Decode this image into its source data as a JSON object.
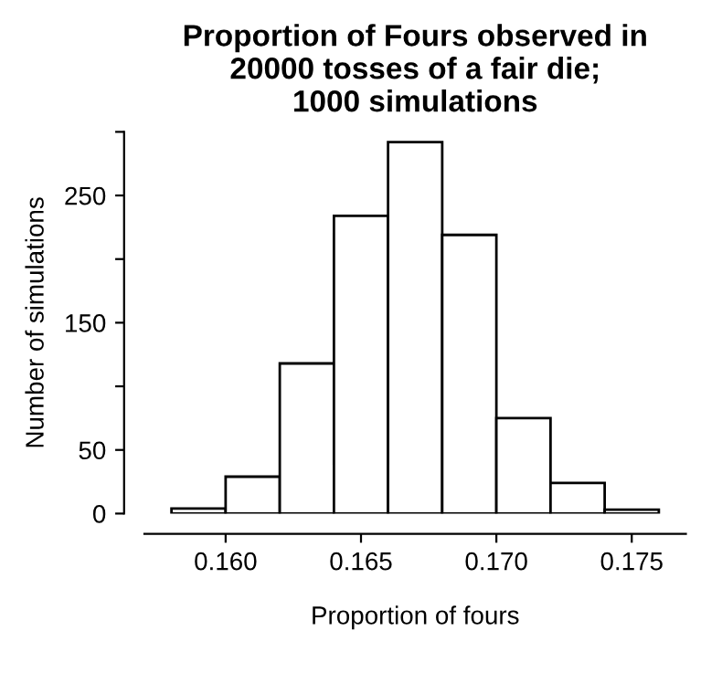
{
  "chart_data": {
    "type": "histogram",
    "title": "Proportion of Fours observed in\n20000 tosses of a fair die;\n1000 simulations",
    "xlabel": "Proportion of fours",
    "ylabel": "Number of simulations",
    "bins": [
      0.158,
      0.16,
      0.162,
      0.164,
      0.166,
      0.168,
      0.17,
      0.172,
      0.174,
      0.176
    ],
    "values": [
      4,
      29,
      118,
      234,
      292,
      219,
      75,
      24,
      3
    ],
    "color": "#ffffff",
    "xlim": [
      0.157,
      0.177
    ],
    "xticks": [
      {
        "value": 0.16,
        "label": "0.160"
      },
      {
        "value": 0.165,
        "label": "0.165"
      },
      {
        "value": 0.17,
        "label": "0.170"
      },
      {
        "value": 0.175,
        "label": "0.175"
      }
    ],
    "ylim": [
      0,
      300
    ],
    "yticks": [
      0,
      50,
      {
        "value": 100,
        "label": null
      },
      150,
      {
        "value": 200,
        "label": null
      },
      250,
      {
        "value": 300,
        "label": null
      }
    ],
    "grid": false
  }
}
